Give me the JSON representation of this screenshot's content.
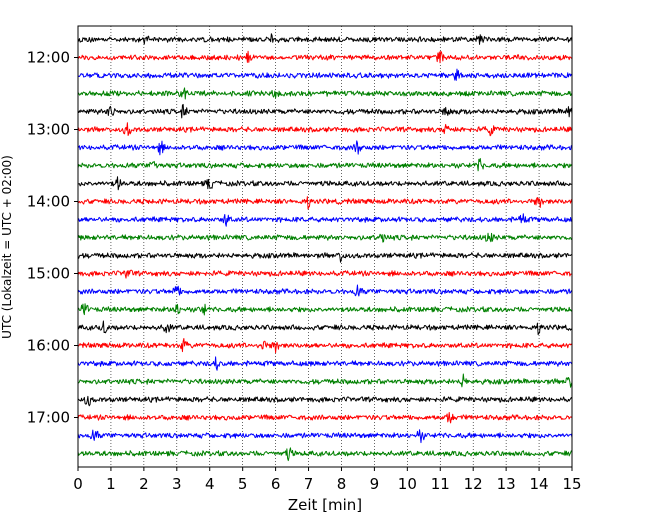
{
  "chart_data": {
    "type": "line",
    "chart_kind": "helicorder seismogram (stacked traces)",
    "xlabel": "Zeit  [min]",
    "ylabel": "UTC (Lokalzeit = UTC + 02:00)",
    "xlim": [
      0,
      15
    ],
    "x_ticks": [
      "0",
      "1",
      "2",
      "3",
      "4",
      "5",
      "6",
      "7",
      "8",
      "9",
      "10",
      "11",
      "12",
      "13",
      "14",
      "15"
    ],
    "y_tick_labels": [
      "12:00",
      "13:00",
      "14:00",
      "15:00",
      "16:00",
      "17:00"
    ],
    "grid": "vertical dotted lines at each minute",
    "row_minutes": 15,
    "trace_colors": [
      "#000000",
      "#ff0000",
      "#0000ff",
      "#008000"
    ],
    "rows": [
      {
        "start": "11:45",
        "color": "#000000"
      },
      {
        "start": "12:00",
        "color": "#ff0000"
      },
      {
        "start": "12:15",
        "color": "#0000ff"
      },
      {
        "start": "12:30",
        "color": "#008000"
      },
      {
        "start": "12:45",
        "color": "#000000"
      },
      {
        "start": "13:00",
        "color": "#ff0000"
      },
      {
        "start": "13:15",
        "color": "#0000ff"
      },
      {
        "start": "13:30",
        "color": "#008000"
      },
      {
        "start": "13:45",
        "color": "#000000"
      },
      {
        "start": "14:00",
        "color": "#ff0000"
      },
      {
        "start": "14:15",
        "color": "#0000ff"
      },
      {
        "start": "14:30",
        "color": "#008000"
      },
      {
        "start": "14:45",
        "color": "#000000"
      },
      {
        "start": "15:00",
        "color": "#ff0000"
      },
      {
        "start": "15:15",
        "color": "#0000ff"
      },
      {
        "start": "15:30",
        "color": "#008000"
      },
      {
        "start": "15:45",
        "color": "#000000"
      },
      {
        "start": "16:00",
        "color": "#ff0000"
      },
      {
        "start": "16:15",
        "color": "#0000ff"
      },
      {
        "start": "16:30",
        "color": "#008000"
      },
      {
        "start": "16:45",
        "color": "#000000"
      },
      {
        "start": "17:00",
        "color": "#ff0000"
      },
      {
        "start": "17:15",
        "color": "#0000ff"
      },
      {
        "start": "17:30",
        "color": "#008000"
      }
    ],
    "notable_spikes_minutes": [
      [
        2.1,
        5.9,
        12.2
      ],
      [
        5.2,
        11.0
      ],
      [
        11.5
      ],
      [
        3.2,
        6.0
      ],
      [
        1.0,
        3.2,
        11.2,
        14.9
      ],
      [
        1.5,
        11.2,
        12.5
      ],
      [
        2.5,
        8.5
      ],
      [
        2.3,
        12.2
      ],
      [
        1.2,
        4.0
      ],
      [
        7.0,
        14.0
      ],
      [
        4.5,
        13.5
      ],
      [
        9.2,
        12.5
      ],
      [
        8.0
      ],
      [
        1.5
      ],
      [
        3.0,
        8.5
      ],
      [
        0.2,
        3.0,
        3.8
      ],
      [
        0.8,
        2.7,
        14.0
      ],
      [
        3.2,
        5.6,
        6.0
      ],
      [
        4.2
      ],
      [
        11.7,
        14.9
      ],
      [
        0.3
      ],
      [
        11.3
      ],
      [
        0.5,
        10.4
      ],
      [
        6.4
      ]
    ]
  }
}
